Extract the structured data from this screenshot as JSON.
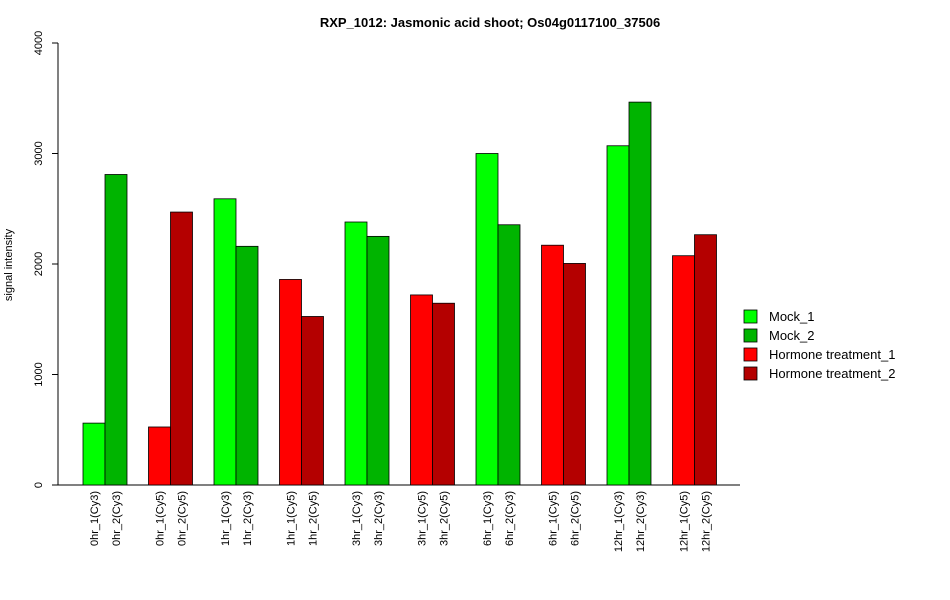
{
  "chart_data": {
    "type": "bar",
    "title": "RXP_1012: Jasmonic acid shoot; Os04g0117100_37506",
    "ylabel": "signal intensity",
    "ylim": [
      0,
      4000
    ],
    "yticks": [
      "0",
      "1000",
      "2000",
      "3000",
      "4000"
    ],
    "grid": false,
    "legend_position": "right",
    "series_styles": [
      {
        "name": "Mock_1",
        "color": "#00ff00"
      },
      {
        "name": "Mock_2",
        "color": "#00b400"
      },
      {
        "name": "Hormone treatment_1",
        "color": "#ff0000"
      },
      {
        "name": "Hormone treatment_2",
        "color": "#b40000"
      }
    ],
    "bars": [
      {
        "label": "0hr_1(Cy3)",
        "value": 560,
        "series": 0
      },
      {
        "label": "0hr_2(Cy3)",
        "value": 2810,
        "series": 1
      },
      {
        "label": "0hr_1(Cy5)",
        "value": 525,
        "series": 2
      },
      {
        "label": "0hr_2(Cy5)",
        "value": 2470,
        "series": 3
      },
      {
        "label": "1hr_1(Cy3)",
        "value": 2590,
        "series": 0
      },
      {
        "label": "1hr_2(Cy3)",
        "value": 2160,
        "series": 1
      },
      {
        "label": "1hr_1(Cy5)",
        "value": 1860,
        "series": 2
      },
      {
        "label": "1hr_2(Cy5)",
        "value": 1525,
        "series": 3
      },
      {
        "label": "3hr_1(Cy3)",
        "value": 2380,
        "series": 0
      },
      {
        "label": "3hr_2(Cy3)",
        "value": 2250,
        "series": 1
      },
      {
        "label": "3hr_1(Cy5)",
        "value": 1720,
        "series": 2
      },
      {
        "label": "3hr_2(Cy5)",
        "value": 1645,
        "series": 3
      },
      {
        "label": "6hr_1(Cy3)",
        "value": 3000,
        "series": 0
      },
      {
        "label": "6hr_2(Cy3)",
        "value": 2355,
        "series": 1
      },
      {
        "label": "6hr_1(Cy5)",
        "value": 2170,
        "series": 2
      },
      {
        "label": "6hr_2(Cy5)",
        "value": 2005,
        "series": 3
      },
      {
        "label": "12hr_1(Cy3)",
        "value": 3070,
        "series": 0
      },
      {
        "label": "12hr_2(Cy3)",
        "value": 3465,
        "series": 1
      },
      {
        "label": "12hr_1(Cy5)",
        "value": 2075,
        "series": 2
      },
      {
        "label": "12hr_2(Cy5)",
        "value": 2265,
        "series": 3
      }
    ]
  }
}
